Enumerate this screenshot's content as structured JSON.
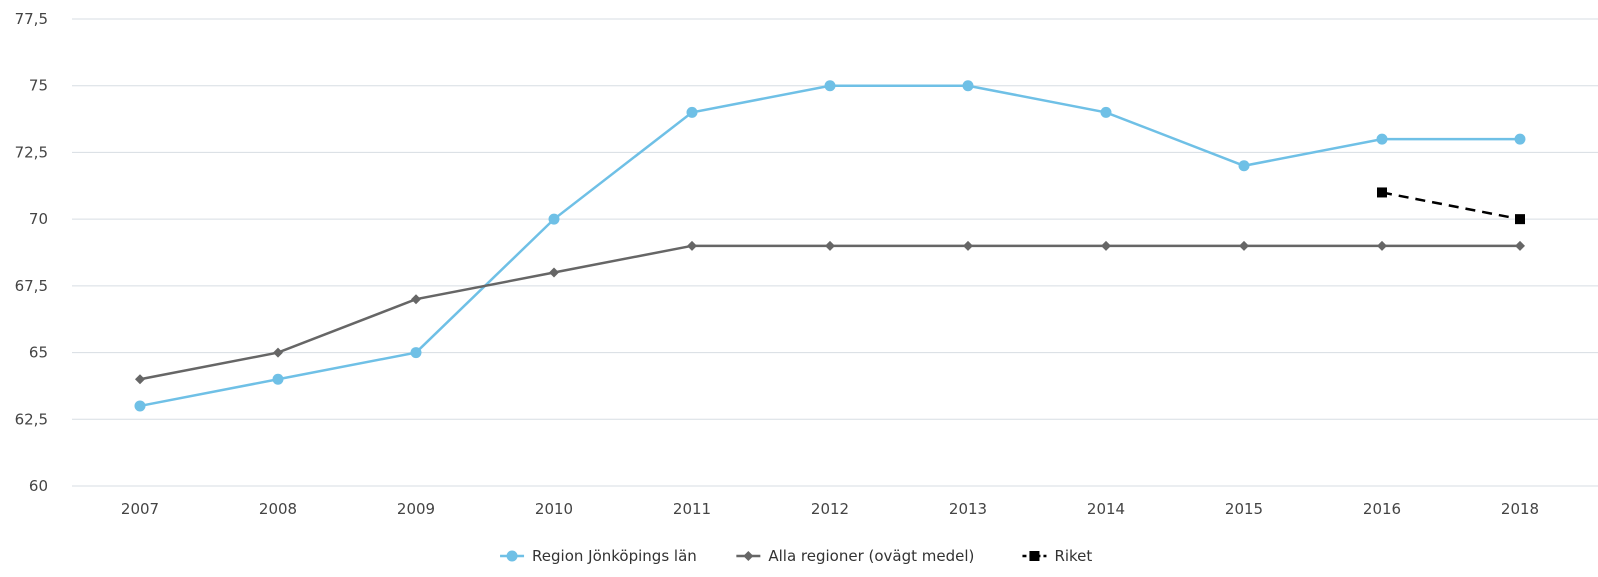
{
  "chart_data": {
    "type": "line",
    "title": "",
    "xlabel": "",
    "ylabel": "",
    "categories": [
      "2007",
      "2008",
      "2009",
      "2010",
      "2011",
      "2012",
      "2013",
      "2014",
      "2015",
      "2016",
      "2018"
    ],
    "ylim": [
      60,
      77.5
    ],
    "yticks": [
      60,
      62.5,
      65,
      67.5,
      70,
      72.5,
      75,
      77.5
    ],
    "ytick_labels": [
      "60",
      "62,5",
      "65",
      "67,5",
      "70",
      "72,5",
      "75",
      "77,5"
    ],
    "grid": true,
    "legend_position": "bottom",
    "series": [
      {
        "name": "Region Jönköpings län",
        "values": [
          63,
          64,
          65,
          70,
          74,
          75,
          75,
          74,
          72,
          73,
          73
        ],
        "color": "#6fc0e6",
        "marker": "circle",
        "line_style": "solid"
      },
      {
        "name": "Alla regioner (ovägt medel)",
        "values": [
          64,
          65,
          67,
          68,
          69,
          69,
          69,
          69,
          69,
          69,
          69
        ],
        "color": "#666666",
        "marker": "diamond",
        "line_style": "solid"
      },
      {
        "name": "Riket",
        "values": [
          null,
          null,
          null,
          null,
          null,
          null,
          null,
          null,
          null,
          71,
          70
        ],
        "color": "#000000",
        "marker": "square",
        "line_style": "dashed"
      }
    ],
    "colors": {
      "grid": "#d7dde3",
      "axis_text": "#444444",
      "legend_text": "#333333"
    }
  }
}
